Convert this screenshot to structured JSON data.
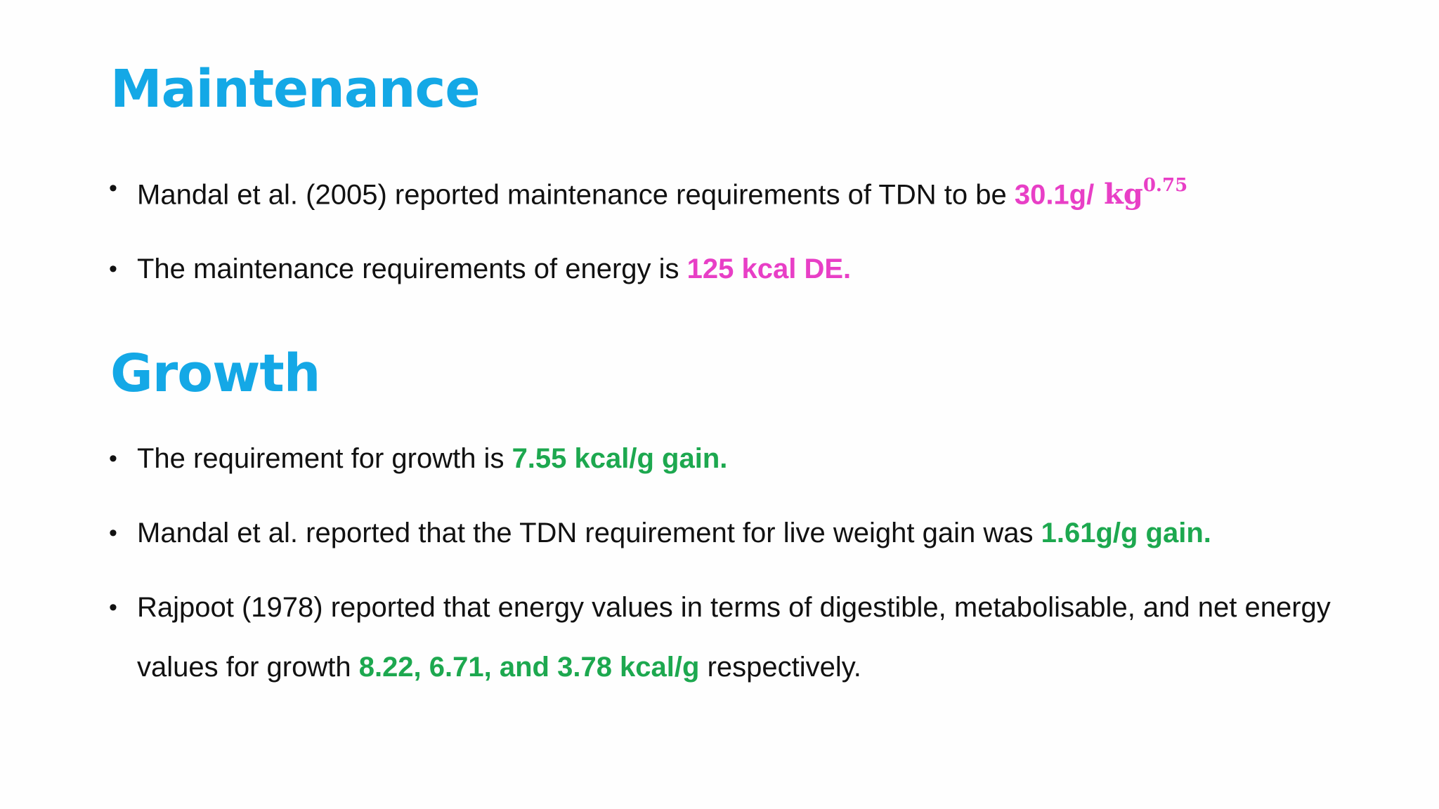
{
  "maintenance": {
    "heading": "Maintenance",
    "bullets": [
      {
        "text": "Mandal et al. (2005) reported maintenance requirements of TDN to be ",
        "highlight": "30.1g/",
        "math_base": " kg",
        "math_exponent": "0.75"
      },
      {
        "text": "The maintenance requirements of energy is ",
        "highlight": "125 kcal DE."
      }
    ]
  },
  "growth": {
    "heading": "Growth",
    "bullets": [
      {
        "text": "The requirement for growth is ",
        "highlight": "7.55 kcal/g gain."
      },
      {
        "text": "Mandal et al. reported that the TDN requirement for live weight gain was ",
        "highlight": "1.61g/g gain."
      },
      {
        "text": "Rajpoot (1978) reported that energy values in terms of digestible, metabolisable, and net energy values for growth ",
        "highlight": "8.22, 6.71, and 3.78 kcal/g",
        "text_after": " respectively."
      }
    ]
  },
  "colors": {
    "heading": "#14a8e6",
    "highlight_maintenance": "#e83fc6",
    "highlight_growth": "#1da84f",
    "body_text": "#111111",
    "background": "#fefefe"
  }
}
